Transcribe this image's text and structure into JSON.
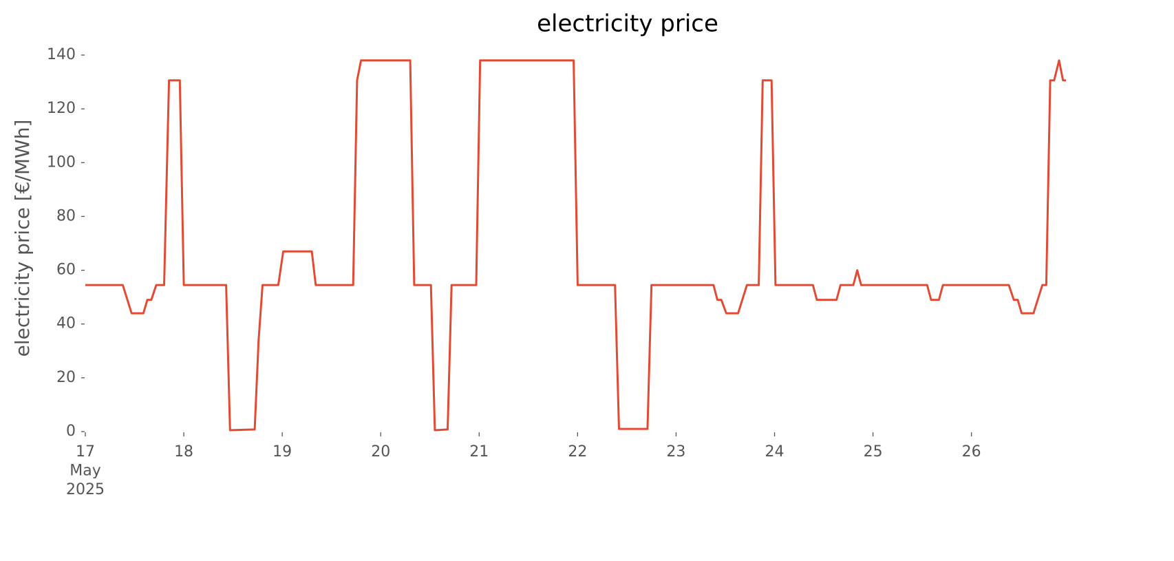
{
  "chart_data": {
    "type": "line",
    "title": "electricity price",
    "y_label": "electricity price [€/MWh]",
    "x": [
      0,
      0.38,
      0.47,
      0.59,
      0.63,
      0.67,
      0.72,
      0.8,
      0.85,
      0.96,
      1.0,
      1.43,
      1.47,
      1.72,
      1.76,
      1.8,
      1.96,
      2.01,
      2.3,
      2.34,
      2.72,
      2.76,
      2.8,
      3.3,
      3.34,
      3.51,
      3.55,
      3.68,
      3.72,
      3.97,
      4.01,
      4.96,
      5.0,
      5.38,
      5.42,
      5.71,
      5.75,
      6.38,
      6.42,
      6.46,
      6.51,
      6.63,
      6.72,
      6.84,
      6.88,
      6.97,
      7.01,
      7.39,
      7.43,
      7.63,
      7.67,
      7.8,
      7.84,
      7.88,
      8.55,
      8.59,
      8.67,
      8.71,
      9.38,
      9.43,
      9.47,
      9.51,
      9.63,
      9.72,
      9.76,
      9.8,
      9.84,
      9.89,
      9.93,
      9.96
    ],
    "series": [
      {
        "name": "electricity price",
        "color": "#e24a33",
        "values": [
          54.5,
          54.5,
          44,
          44,
          49,
          49,
          54.5,
          54.5,
          130.6,
          130.6,
          54.5,
          54.5,
          0.5,
          0.8,
          34,
          54.5,
          54.5,
          67,
          67,
          54.5,
          54.5,
          130.6,
          138,
          138,
          54.5,
          54.5,
          0.5,
          0.8,
          54.5,
          54.5,
          138,
          138,
          54.5,
          54.5,
          1,
          1,
          54.5,
          54.5,
          49,
          49,
          44,
          44,
          54.5,
          54.5,
          130.6,
          130.6,
          54.5,
          54.5,
          49,
          49,
          54.5,
          54.5,
          60,
          54.5,
          54.5,
          49,
          49,
          54.5,
          54.5,
          49,
          49,
          44,
          44,
          54.5,
          54.5,
          130.6,
          130.6,
          138,
          130.6,
          130.6
        ]
      }
    ],
    "xlim": [
      0,
      9.96
    ],
    "xticks": [
      {
        "value": 0,
        "label": "17\nMay\n2025"
      },
      {
        "value": 1,
        "label": "18"
      },
      {
        "value": 2,
        "label": "19"
      },
      {
        "value": 3,
        "label": "20"
      },
      {
        "value": 4,
        "label": "21"
      },
      {
        "value": 5,
        "label": "22"
      },
      {
        "value": 6,
        "label": "23"
      },
      {
        "value": 7,
        "label": "24"
      },
      {
        "value": 8,
        "label": "25"
      },
      {
        "value": 9,
        "label": "26"
      }
    ],
    "ylim": [
      0,
      140
    ],
    "yticks": [
      0,
      20,
      40,
      60,
      80,
      100,
      120,
      140
    ],
    "grid": false
  }
}
